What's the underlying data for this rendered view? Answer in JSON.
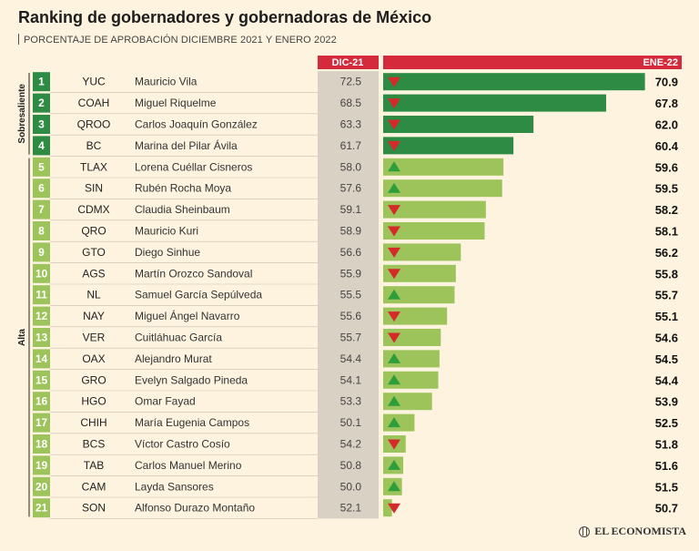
{
  "title": "Ranking de gobernadores y gobernadoras de México",
  "subtitle": "PORCENTAJE DE APROBACIÓN DICIEMBRE 2021 Y ENERO 2022",
  "source_logo": "EL ECONOMISTA",
  "colors": {
    "background": "#fdf3df",
    "dark_green": "#2e8b43",
    "light_green": "#9cc45a",
    "header_red": "#d42a3c",
    "dic_column": "#d9d1c4",
    "down_arrow": "#d42a2a",
    "up_arrow": "#2e9e3a"
  },
  "chart_data": {
    "type": "bar",
    "title": "Ranking de gobernadores y gobernadoras de México",
    "subtitle": "PORCENTAJE DE APROBACIÓN DICIEMBRE 2021 Y ENERO 2022",
    "column_headers": {
      "previous": "DIC-21",
      "current": "ENE-22"
    },
    "categories_groups": [
      {
        "label": "Sobresaliente",
        "ranks": [
          1,
          4
        ],
        "color": "dark"
      },
      {
        "label": "Alta",
        "ranks": [
          5,
          21
        ],
        "color": "light"
      }
    ],
    "xlim": [
      50,
      71
    ],
    "rows": [
      {
        "rank": "1",
        "state": "YUC",
        "name": "Mauricio Vila",
        "dic": "72.5",
        "ene": "70.9",
        "trend": "down"
      },
      {
        "rank": "2",
        "state": "COAH",
        "name": "Miguel Riquelme",
        "dic": "68.5",
        "ene": "67.8",
        "trend": "down"
      },
      {
        "rank": "3",
        "state": "QROO",
        "name": "Carlos Joaquín González",
        "dic": "63.3",
        "ene": "62.0",
        "trend": "down"
      },
      {
        "rank": "4",
        "state": "BC",
        "name": "Marina del Pilar Ávila",
        "dic": "61.7",
        "ene": "60.4",
        "trend": "down"
      },
      {
        "rank": "5",
        "state": "TLAX",
        "name": "Lorena Cuéllar Cisneros",
        "dic": "58.0",
        "ene": "59.6",
        "trend": "up"
      },
      {
        "rank": "6",
        "state": "SIN",
        "name": "Rubén Rocha Moya",
        "dic": "57.6",
        "ene": "59.5",
        "trend": "up"
      },
      {
        "rank": "7",
        "state": "CDMX",
        "name": "Claudia Sheinbaum",
        "dic": "59.1",
        "ene": "58.2",
        "trend": "down"
      },
      {
        "rank": "8",
        "state": "QRO",
        "name": "Mauricio Kuri",
        "dic": "58.9",
        "ene": "58.1",
        "trend": "down"
      },
      {
        "rank": "9",
        "state": "GTO",
        "name": "Diego Sinhue",
        "dic": "56.6",
        "ene": "56.2",
        "trend": "down"
      },
      {
        "rank": "10",
        "state": "AGS",
        "name": "Martín Orozco Sandoval",
        "dic": "55.9",
        "ene": "55.8",
        "trend": "down"
      },
      {
        "rank": "11",
        "state": "NL",
        "name": "Samuel García Sepúlveda",
        "dic": "55.5",
        "ene": "55.7",
        "trend": "up"
      },
      {
        "rank": "12",
        "state": "NAY",
        "name": "Miguel Ángel Navarro",
        "dic": "55.6",
        "ene": "55.1",
        "trend": "down"
      },
      {
        "rank": "13",
        "state": "VER",
        "name": "Cuitláhuac García",
        "dic": "55.7",
        "ene": "54.6",
        "trend": "down"
      },
      {
        "rank": "14",
        "state": "OAX",
        "name": "Alejandro Murat",
        "dic": "54.4",
        "ene": "54.5",
        "trend": "up"
      },
      {
        "rank": "15",
        "state": "GRO",
        "name": "Evelyn Salgado Pineda",
        "dic": "54.1",
        "ene": "54.4",
        "trend": "up"
      },
      {
        "rank": "16",
        "state": "HGO",
        "name": "Omar Fayad",
        "dic": "53.3",
        "ene": "53.9",
        "trend": "up"
      },
      {
        "rank": "17",
        "state": "CHIH",
        "name": "María Eugenia Campos",
        "dic": "50.1",
        "ene": "52.5",
        "trend": "up"
      },
      {
        "rank": "18",
        "state": "BCS",
        "name": "Víctor Castro Cosío",
        "dic": "54.2",
        "ene": "51.8",
        "trend": "down"
      },
      {
        "rank": "19",
        "state": "TAB",
        "name": "Carlos Manuel Merino",
        "dic": "50.8",
        "ene": "51.6",
        "trend": "up"
      },
      {
        "rank": "20",
        "state": "CAM",
        "name": "Layda Sansores",
        "dic": "50.0",
        "ene": "51.5",
        "trend": "up"
      },
      {
        "rank": "21",
        "state": "SON",
        "name": "Alfonso Durazo Montaño",
        "dic": "52.1",
        "ene": "50.7",
        "trend": "down"
      }
    ]
  }
}
